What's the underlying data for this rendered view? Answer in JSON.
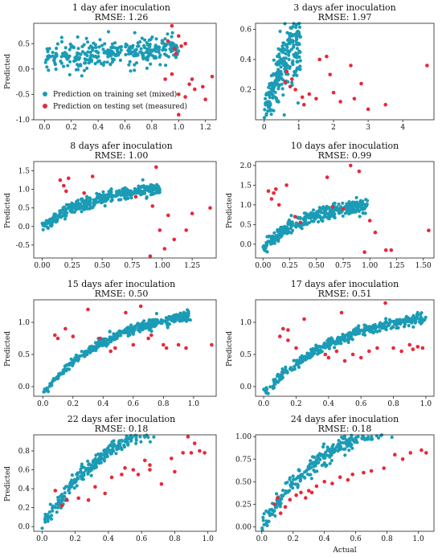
{
  "chart_data": [
    {
      "type": "scatter",
      "title": "1 day afer inoculation",
      "subtitle": "RMSE: 1.26",
      "ylabel": "Predicted",
      "xlabel": "",
      "xlim": [
        -0.08,
        1.28
      ],
      "ylim": [
        -1.0,
        0.9
      ],
      "xticks": [
        0.0,
        0.2,
        0.4,
        0.6,
        0.8,
        1.0,
        1.2
      ],
      "yticks": [
        -1.0,
        -0.5,
        0.0,
        0.5
      ],
      "legend": {
        "placement": "lower-left",
        "entries": [
          "Prediction on training set (mixed)",
          "Prediction on testing set (measured)"
        ]
      },
      "train": {
        "xmax": 1.0,
        "a": 0.22,
        "b": 0.18,
        "c": 0,
        "spread": 0.13,
        "n": 320
      },
      "test": [
        [
          0.95,
          0.85
        ],
        [
          1.0,
          0.65
        ],
        [
          0.92,
          0.55
        ],
        [
          0.97,
          0.4
        ],
        [
          1.02,
          0.45
        ],
        [
          1.05,
          0.5
        ],
        [
          0.9,
          -0.2
        ],
        [
          0.95,
          -0.1
        ],
        [
          1.0,
          -0.5
        ],
        [
          1.05,
          -0.55
        ],
        [
          1.08,
          -0.3
        ],
        [
          1.0,
          -0.9
        ],
        [
          1.12,
          -0.4
        ],
        [
          1.18,
          -0.35
        ],
        [
          1.2,
          -0.6
        ],
        [
          1.25,
          -0.15
        ],
        [
          0.98,
          0.3
        ],
        [
          1.1,
          -0.2
        ]
      ]
    },
    {
      "type": "scatter",
      "title": "3 days afer inoculation",
      "subtitle": "RMSE: 1.97",
      "ylabel": "",
      "xlabel": "",
      "xlim": [
        -0.25,
        4.9
      ],
      "ylim": [
        0.0,
        0.64
      ],
      "xticks": [
        0,
        1,
        2,
        3,
        4
      ],
      "yticks": [
        0.2,
        0.4,
        0.6
      ],
      "train": {
        "xmax": 1.05,
        "a": 0.06,
        "b": 0.52,
        "c": 0,
        "spread": 0.11,
        "n": 260
      },
      "test": [
        [
          0.6,
          0.25
        ],
        [
          0.75,
          0.22
        ],
        [
          0.9,
          0.2
        ],
        [
          1.1,
          0.15
        ],
        [
          1.15,
          0.1
        ],
        [
          1.3,
          0.17
        ],
        [
          1.5,
          0.14
        ],
        [
          1.6,
          0.4
        ],
        [
          1.8,
          0.42
        ],
        [
          1.9,
          0.3
        ],
        [
          2.0,
          0.18
        ],
        [
          2.2,
          0.12
        ],
        [
          2.5,
          0.36
        ],
        [
          2.6,
          0.14
        ],
        [
          2.8,
          0.24
        ],
        [
          3.0,
          0.07
        ],
        [
          3.5,
          0.1
        ],
        [
          4.7,
          0.36
        ],
        [
          0.65,
          0.32
        ],
        [
          0.8,
          0.27
        ]
      ]
    },
    {
      "type": "scatter",
      "title": "8 days afer inoculation",
      "subtitle": "RMSE: 1.00",
      "ylabel": "Predicted",
      "xlabel": "",
      "xlim": [
        -0.07,
        1.45
      ],
      "ylim": [
        -0.85,
        1.75
      ],
      "xticks": [
        0.0,
        0.25,
        0.5,
        0.75,
        1.0,
        1.25
      ],
      "yticks": [
        -0.5,
        0.0,
        0.5,
        1.0,
        1.5
      ],
      "train": {
        "xmax": 0.98,
        "a": 0.0,
        "b": 1.15,
        "c": -0.35,
        "spread": 0.09,
        "n": 360
      },
      "test": [
        [
          0.15,
          1.25
        ],
        [
          0.22,
          1.3
        ],
        [
          0.18,
          1.1
        ],
        [
          0.2,
          0.95
        ],
        [
          0.42,
          1.35
        ],
        [
          0.35,
          0.9
        ],
        [
          0.78,
          0.8
        ],
        [
          0.95,
          1.6
        ],
        [
          0.92,
          0.55
        ],
        [
          0.98,
          -0.1
        ],
        [
          1.02,
          -0.6
        ],
        [
          1.05,
          0.3
        ],
        [
          1.1,
          -0.35
        ],
        [
          1.2,
          -0.1
        ],
        [
          1.25,
          0.35
        ],
        [
          1.4,
          0.5
        ],
        [
          0.9,
          -0.8
        ]
      ]
    },
    {
      "type": "scatter",
      "title": "10 days afer inoculation",
      "subtitle": "RMSE: 0.99",
      "ylabel": "Predicted",
      "xlabel": "",
      "xlim": [
        -0.07,
        1.6
      ],
      "ylim": [
        -0.35,
        2.1
      ],
      "xticks": [
        0.0,
        0.25,
        0.5,
        0.75,
        1.0,
        1.25,
        1.5
      ],
      "yticks": [
        0.0,
        0.5,
        1.0,
        1.5,
        2.0
      ],
      "train": {
        "xmax": 0.98,
        "a": -0.1,
        "b": 1.25,
        "c": -0.4,
        "spread": 0.09,
        "n": 360
      },
      "test": [
        [
          0.05,
          1.35
        ],
        [
          0.1,
          1.3
        ],
        [
          0.12,
          1.4
        ],
        [
          0.08,
          1.15
        ],
        [
          0.15,
          1.0
        ],
        [
          0.22,
          1.5
        ],
        [
          0.3,
          0.7
        ],
        [
          0.35,
          0.55
        ],
        [
          0.6,
          1.7
        ],
        [
          0.65,
          0.95
        ],
        [
          0.75,
          0.9
        ],
        [
          0.82,
          2.0
        ],
        [
          0.9,
          1.85
        ],
        [
          0.95,
          -0.2
        ],
        [
          1.0,
          0.6
        ],
        [
          1.05,
          0.3
        ],
        [
          1.15,
          -0.15
        ],
        [
          1.2,
          -0.15
        ],
        [
          1.55,
          0.35
        ]
      ]
    },
    {
      "type": "scatter",
      "title": "15 days afer inoculation",
      "subtitle": "RMSE: 0.50",
      "ylabel": "Predicted",
      "xlabel": "",
      "xlim": [
        -0.06,
        1.15
      ],
      "ylim": [
        -0.15,
        1.35
      ],
      "xticks": [
        0.0,
        0.2,
        0.4,
        0.6,
        0.8,
        1.0
      ],
      "yticks": [
        0.0,
        0.5,
        1.0
      ],
      "train": {
        "xmax": 0.98,
        "a": -0.1,
        "b": 1.35,
        "c": -0.5,
        "spread": 0.04,
        "n": 380
      },
      "test": [
        [
          0.08,
          0.8
        ],
        [
          0.1,
          0.75
        ],
        [
          0.15,
          0.9
        ],
        [
          0.2,
          0.78
        ],
        [
          0.3,
          1.2
        ],
        [
          0.38,
          0.75
        ],
        [
          0.45,
          0.55
        ],
        [
          0.48,
          0.6
        ],
        [
          0.55,
          1.15
        ],
        [
          0.65,
          1.25
        ],
        [
          0.7,
          0.75
        ],
        [
          0.72,
          0.8
        ],
        [
          0.8,
          0.65
        ],
        [
          0.82,
          0.6
        ],
        [
          0.9,
          0.65
        ],
        [
          0.95,
          0.6
        ],
        [
          1.12,
          0.65
        ],
        [
          0.6,
          0.65
        ]
      ]
    },
    {
      "type": "scatter",
      "title": "17 days afer inoculation",
      "subtitle": "RMSE: 0.51",
      "ylabel": "Predicted",
      "xlabel": "",
      "xlim": [
        -0.05,
        1.05
      ],
      "ylim": [
        -0.15,
        1.35
      ],
      "xticks": [
        0.0,
        0.2,
        0.4,
        0.6,
        0.8,
        1.0
      ],
      "yticks": [
        0.0,
        0.5,
        1.0
      ],
      "train": {
        "xmax": 1.0,
        "a": -0.1,
        "b": 1.3,
        "c": -0.45,
        "spread": 0.04,
        "n": 380
      },
      "test": [
        [
          0.1,
          0.78
        ],
        [
          0.12,
          0.9
        ],
        [
          0.15,
          0.88
        ],
        [
          0.15,
          0.72
        ],
        [
          0.2,
          0.6
        ],
        [
          0.25,
          1.05
        ],
        [
          0.38,
          0.5
        ],
        [
          0.45,
          0.55
        ],
        [
          0.48,
          1.15
        ],
        [
          0.5,
          0.4
        ],
        [
          0.55,
          0.5
        ],
        [
          0.6,
          0.45
        ],
        [
          0.65,
          0.55
        ],
        [
          0.7,
          0.6
        ],
        [
          0.75,
          1.3
        ],
        [
          0.8,
          0.6
        ],
        [
          0.85,
          0.55
        ],
        [
          0.9,
          0.65
        ],
        [
          0.92,
          0.58
        ],
        [
          0.95,
          0.62
        ],
        [
          0.98,
          0.6
        ],
        [
          0.4,
          0.45
        ]
      ]
    },
    {
      "type": "scatter",
      "title": "22 days afer inoculation",
      "subtitle": "RMSE: 0.18",
      "ylabel": "Predicted",
      "xlabel": "",
      "xlim": [
        -0.05,
        1.05
      ],
      "ylim": [
        -0.05,
        0.97
      ],
      "xticks": [
        0.0,
        0.2,
        0.4,
        0.6,
        0.8,
        1.0
      ],
      "yticks": [
        0.0,
        0.2,
        0.4,
        0.6,
        0.8
      ],
      "train": {
        "xmax": 1.0,
        "a": 0.0,
        "b": 1.35,
        "c": -0.55,
        "spread": 0.04,
        "n": 400
      },
      "test": [
        [
          0.08,
          0.38
        ],
        [
          0.15,
          0.28
        ],
        [
          0.12,
          0.22
        ],
        [
          0.22,
          0.3
        ],
        [
          0.28,
          0.28
        ],
        [
          0.32,
          0.42
        ],
        [
          0.38,
          0.35
        ],
        [
          0.42,
          0.52
        ],
        [
          0.48,
          0.55
        ],
        [
          0.5,
          0.62
        ],
        [
          0.55,
          0.6
        ],
        [
          0.58,
          0.55
        ],
        [
          0.62,
          0.7
        ],
        [
          0.65,
          0.6
        ],
        [
          0.72,
          0.45
        ],
        [
          0.78,
          0.72
        ],
        [
          0.8,
          0.58
        ],
        [
          0.85,
          0.78
        ],
        [
          0.88,
          0.95
        ],
        [
          0.9,
          0.78
        ],
        [
          0.92,
          0.88
        ],
        [
          0.95,
          0.8
        ],
        [
          0.98,
          0.78
        ],
        [
          0.65,
          0.65
        ]
      ]
    },
    {
      "type": "scatter",
      "title": "24 days afer inoculation",
      "subtitle": "RMSE: 0.18",
      "ylabel": "",
      "xlabel": "Actual",
      "xlim": [
        -0.04,
        1.1
      ],
      "ylim": [
        -0.05,
        1.02
      ],
      "xticks": [
        0.0,
        0.2,
        0.4,
        0.6,
        0.8,
        1.0
      ],
      "yticks": [
        0.0,
        0.25,
        0.5,
        0.75,
        1.0
      ],
      "train": {
        "xmax": 1.02,
        "a": 0.0,
        "b": 1.35,
        "c": -0.55,
        "spread": 0.05,
        "n": 420
      },
      "test": [
        [
          0.08,
          0.25
        ],
        [
          0.1,
          0.32
        ],
        [
          0.12,
          0.15
        ],
        [
          0.15,
          0.22
        ],
        [
          0.18,
          0.3
        ],
        [
          0.22,
          0.35
        ],
        [
          0.25,
          0.38
        ],
        [
          0.28,
          0.32
        ],
        [
          0.3,
          0.4
        ],
        [
          0.32,
          0.38
        ],
        [
          0.35,
          0.45
        ],
        [
          0.4,
          0.5
        ],
        [
          0.45,
          0.48
        ],
        [
          0.5,
          0.55
        ],
        [
          0.55,
          0.52
        ],
        [
          0.58,
          0.58
        ],
        [
          0.65,
          0.6
        ],
        [
          0.7,
          0.62
        ],
        [
          0.78,
          0.65
        ],
        [
          0.85,
          0.8
        ],
        [
          0.9,
          0.75
        ],
        [
          0.95,
          0.82
        ],
        [
          1.02,
          0.85
        ],
        [
          1.05,
          0.82
        ]
      ]
    }
  ],
  "colors": {
    "train": "#1b9bb5",
    "test": "#e8283a"
  }
}
